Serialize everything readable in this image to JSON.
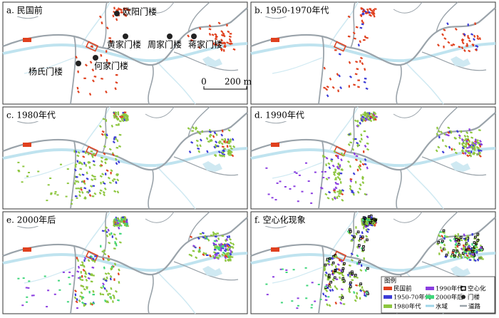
{
  "panels": [
    {
      "label": "a. 民国前"
    },
    {
      "label": "b. 1950-1970年代"
    },
    {
      "label": "c. 1980年代"
    },
    {
      "label": "d. 1990年代"
    },
    {
      "label": "e. 2000年后"
    },
    {
      "label": "f. 空心化现象"
    }
  ],
  "gate_towers": [
    "欧阳门楼",
    "黄家门楼",
    "周家门楼",
    "蒋家门楼",
    "杨氏门楼",
    "何家门楼"
  ],
  "scale_bar": {
    "start": "0",
    "end": "200 m"
  },
  "legend": {
    "title": "图例",
    "items": [
      "民国前",
      "1950-70年代",
      "1980年代",
      "1990年代",
      "2000年后",
      "空心化",
      "门楼",
      "水域",
      "道路"
    ]
  }
}
